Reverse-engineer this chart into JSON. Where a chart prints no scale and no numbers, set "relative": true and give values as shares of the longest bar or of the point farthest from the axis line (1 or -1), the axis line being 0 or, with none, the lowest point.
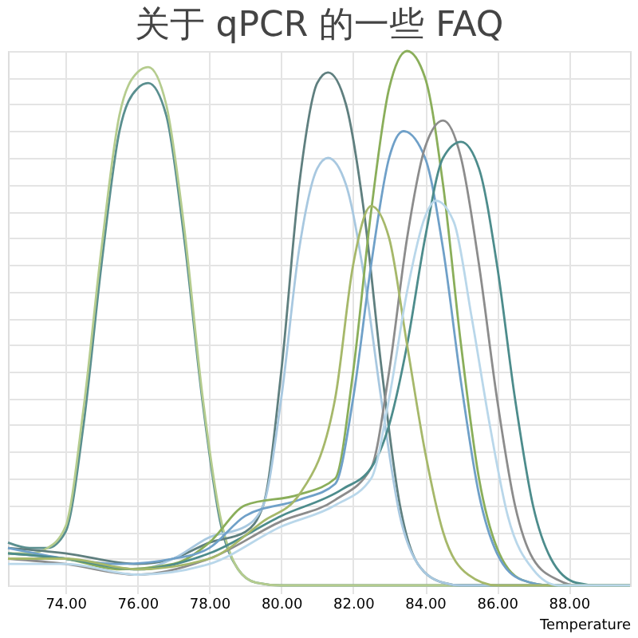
{
  "chart_data": {
    "type": "line",
    "title": "关于 qPCR 的一些 FAQ",
    "xlabel": "Temperature",
    "relative": true,
    "grid": true,
    "tick_labels": "x",
    "legend": false,
    "marker": "none",
    "line_style": "solid",
    "xlim": [
      72.4,
      89.7
    ],
    "xticks": [
      {
        "value": 74,
        "label": "74.00"
      },
      {
        "value": 76,
        "label": "76.00"
      },
      {
        "value": 78,
        "label": "78.00"
      },
      {
        "value": 80,
        "label": "80.00"
      },
      {
        "value": 82,
        "label": "82.00"
      },
      {
        "value": 84,
        "label": "84.00"
      },
      {
        "value": 86,
        "label": "86.00"
      },
      {
        "value": 88,
        "label": "88.00"
      }
    ],
    "series": [
      {
        "color": "#5a8f8f",
        "x": [
          72.4,
          73,
          73.5,
          74,
          74.5,
          75,
          75.5,
          76,
          76.3,
          76.8,
          77.3,
          77.8,
          78.3,
          78.8,
          79.3,
          80,
          84,
          89.7
        ],
        "values": [
          0.08,
          0.07,
          0.07,
          0.1,
          0.3,
          0.6,
          0.85,
          0.93,
          0.94,
          0.88,
          0.65,
          0.35,
          0.12,
          0.03,
          0.005,
          0,
          0,
          0
        ]
      },
      {
        "color": "#b5cc8e",
        "x": [
          72.4,
          73,
          73.5,
          74,
          74.5,
          75,
          75.5,
          76,
          76.3,
          76.8,
          77.3,
          77.8,
          78.3,
          78.8,
          79.3,
          80,
          84,
          89.7
        ],
        "values": [
          0.06,
          0.06,
          0.07,
          0.11,
          0.33,
          0.63,
          0.88,
          0.96,
          0.97,
          0.9,
          0.67,
          0.36,
          0.13,
          0.03,
          0.005,
          0,
          0,
          0
        ]
      },
      {
        "color": "#5f7f7f",
        "x": [
          72.4,
          74,
          76,
          77,
          78,
          79,
          79.5,
          80,
          80.5,
          81,
          81.3,
          81.8,
          82.3,
          82.8,
          83.3,
          83.8,
          84.5,
          85,
          89.7
        ],
        "values": [
          0.07,
          0.06,
          0.04,
          0.05,
          0.08,
          0.1,
          0.15,
          0.4,
          0.75,
          0.94,
          0.96,
          0.9,
          0.7,
          0.4,
          0.15,
          0.04,
          0.005,
          0,
          0
        ]
      },
      {
        "color": "#a8c8e0",
        "x": [
          72.4,
          74,
          76,
          77,
          78,
          79,
          79.5,
          80,
          80.5,
          81,
          81.3,
          81.8,
          82.3,
          82.8,
          83.3,
          83.8,
          84.5,
          85,
          89.7
        ],
        "values": [
          0.06,
          0.05,
          0.03,
          0.05,
          0.09,
          0.11,
          0.15,
          0.35,
          0.63,
          0.78,
          0.8,
          0.75,
          0.58,
          0.34,
          0.13,
          0.04,
          0.005,
          0,
          0
        ]
      },
      {
        "color": "#8aae5a",
        "x": [
          72.4,
          74,
          75.5,
          77,
          78,
          79,
          80.5,
          81.5,
          82,
          82.5,
          83,
          83.5,
          84,
          84.5,
          85,
          85.5,
          86,
          86.7,
          87.5,
          89.7
        ],
        "values": [
          0.06,
          0.05,
          0.03,
          0.04,
          0.08,
          0.15,
          0.17,
          0.2,
          0.4,
          0.7,
          0.93,
          1,
          0.95,
          0.75,
          0.45,
          0.2,
          0.07,
          0.01,
          0,
          0
        ]
      },
      {
        "color": "#6fa0c8",
        "x": [
          72.4,
          74,
          75.5,
          77,
          78,
          79,
          80.5,
          81.5,
          82,
          82.5,
          83,
          83.4,
          84,
          84.5,
          85,
          85.5,
          86,
          86.7,
          87.5,
          89.7
        ],
        "values": [
          0.07,
          0.05,
          0.04,
          0.05,
          0.07,
          0.13,
          0.16,
          0.19,
          0.35,
          0.6,
          0.8,
          0.85,
          0.8,
          0.63,
          0.38,
          0.17,
          0.06,
          0.01,
          0,
          0
        ]
      },
      {
        "color": "#8c8c8c",
        "x": [
          72.4,
          74,
          76,
          78,
          80,
          81.5,
          82.5,
          83,
          83.5,
          84,
          84.5,
          85,
          85.5,
          86,
          86.5,
          87,
          87.7,
          88.2,
          89.7
        ],
        "values": [
          0.05,
          0.04,
          0.02,
          0.05,
          0.12,
          0.16,
          0.22,
          0.4,
          0.65,
          0.82,
          0.87,
          0.8,
          0.6,
          0.35,
          0.15,
          0.05,
          0.01,
          0,
          0
        ]
      },
      {
        "color": "#4d8c8c",
        "x": [
          72.4,
          74,
          76,
          78,
          80,
          81.7,
          82.5,
          83,
          83.5,
          84,
          84.5,
          85,
          85.5,
          86,
          86.5,
          87,
          87.5,
          88.2,
          88.8,
          89.7
        ],
        "values": [
          0.06,
          0.05,
          0.03,
          0.06,
          0.13,
          0.18,
          0.22,
          0.3,
          0.45,
          0.65,
          0.8,
          0.83,
          0.78,
          0.6,
          0.35,
          0.15,
          0.05,
          0.005,
          0,
          0
        ]
      },
      {
        "color": "#a6b86a",
        "x": [
          72.4,
          74,
          76,
          78,
          79.5,
          80.5,
          81.5,
          82,
          82.5,
          83,
          83.5,
          84,
          84.5,
          85.2,
          86,
          89.7
        ],
        "values": [
          0.05,
          0.05,
          0.03,
          0.05,
          0.12,
          0.17,
          0.35,
          0.6,
          0.71,
          0.65,
          0.45,
          0.25,
          0.1,
          0.02,
          0,
          0
        ]
      },
      {
        "color": "#b9d7ea",
        "x": [
          72.4,
          74,
          76,
          78,
          80,
          81.5,
          82.5,
          83,
          83.5,
          84,
          84.3,
          84.8,
          85.3,
          85.8,
          86.3,
          87,
          87.7,
          89.7
        ],
        "values": [
          0.04,
          0.04,
          0.02,
          0.04,
          0.11,
          0.15,
          0.2,
          0.35,
          0.55,
          0.69,
          0.72,
          0.68,
          0.5,
          0.3,
          0.13,
          0.03,
          0,
          0
        ]
      }
    ]
  }
}
